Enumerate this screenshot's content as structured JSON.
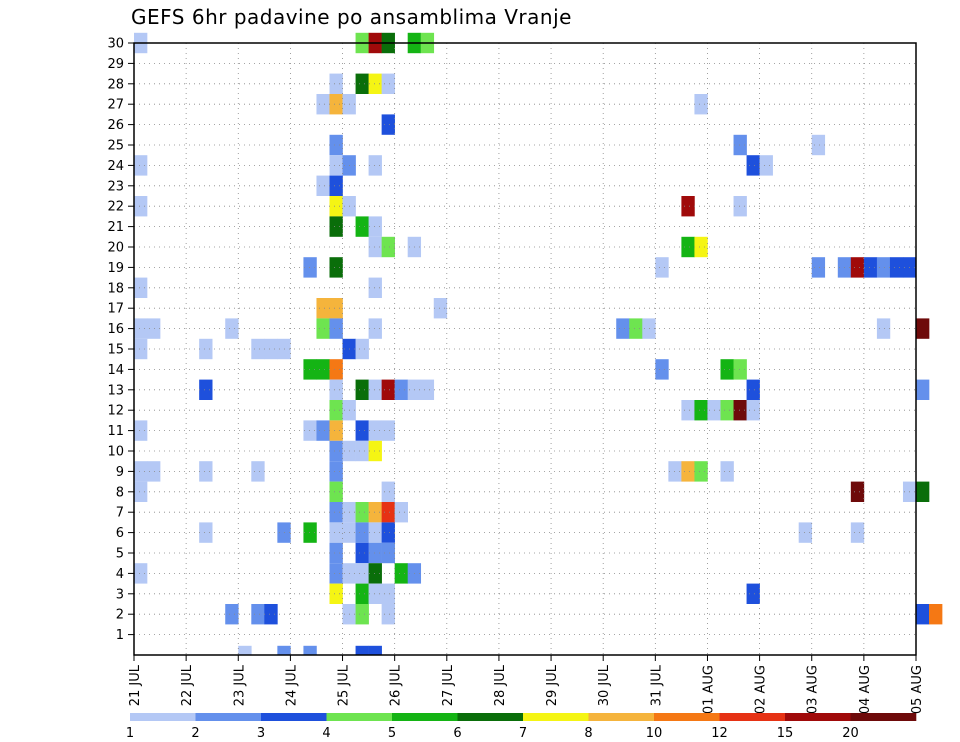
{
  "chart_data": {
    "type": "heatmap",
    "title": "GEFS 6hr padavine po ansamblima Vranje",
    "y_ticks": [
      1,
      2,
      3,
      4,
      5,
      6,
      7,
      8,
      9,
      10,
      11,
      12,
      13,
      14,
      15,
      16,
      17,
      18,
      19,
      20,
      21,
      22,
      23,
      24,
      25,
      26,
      27,
      28,
      29,
      30
    ],
    "x_tick_labels": [
      "21 JUL",
      "22 JUL",
      "23 JUL",
      "24 JUL",
      "25 JUL",
      "26 JUL",
      "27 JUL",
      "28 JUL",
      "29 JUL",
      "30 JUL",
      "31 JUL",
      "01 AUG",
      "02 AUG",
      "03 AUG",
      "04 AUG",
      "05 AUG"
    ],
    "x_start": "21 JUL",
    "x_step_hours": 6,
    "grid": true,
    "legend_position": "bottom",
    "colorbar": {
      "colors": [
        "#b4c8f5",
        "#6490ec",
        "#1e50dc",
        "#6ee450",
        "#14b414",
        "#0a6e0a",
        "#f5f514",
        "#f5b43c",
        "#f57814",
        "#e63214",
        "#a00a0a",
        "#6e0a0a"
      ],
      "labels": [
        "1",
        "2",
        "3",
        "4",
        "5",
        "6",
        "7",
        "8",
        "10",
        "12",
        "15",
        "20"
      ]
    },
    "cells": [
      {
        "member": 30,
        "step": 1,
        "level": 1
      },
      {
        "member": 30,
        "step": 18,
        "level": 4
      },
      {
        "member": 30,
        "step": 19,
        "level": 11
      },
      {
        "member": 30,
        "step": 20,
        "level": 6
      },
      {
        "member": 30,
        "step": 22,
        "level": 5
      },
      {
        "member": 30,
        "step": 23,
        "level": 4
      },
      {
        "member": 28,
        "step": 16,
        "level": 1
      },
      {
        "member": 28,
        "step": 18,
        "level": 6
      },
      {
        "member": 28,
        "step": 19,
        "level": 7
      },
      {
        "member": 28,
        "step": 20,
        "level": 1
      },
      {
        "member": 27,
        "step": 15,
        "level": 1
      },
      {
        "member": 27,
        "step": 16,
        "level": 8
      },
      {
        "member": 27,
        "step": 17,
        "level": 1
      },
      {
        "member": 27,
        "step": 44,
        "level": 1
      },
      {
        "member": 26,
        "step": 20,
        "level": 3
      },
      {
        "member": 25,
        "step": 16,
        "level": 2
      },
      {
        "member": 25,
        "step": 47,
        "level": 2
      },
      {
        "member": 25,
        "step": 53,
        "level": 1
      },
      {
        "member": 24,
        "step": 1,
        "level": 1
      },
      {
        "member": 24,
        "step": 16,
        "level": 1
      },
      {
        "member": 24,
        "step": 17,
        "level": 2
      },
      {
        "member": 24,
        "step": 19,
        "level": 1
      },
      {
        "member": 24,
        "step": 48,
        "level": 3
      },
      {
        "member": 24,
        "step": 49,
        "level": 1
      },
      {
        "member": 23,
        "step": 15,
        "level": 1
      },
      {
        "member": 23,
        "step": 16,
        "level": 3
      },
      {
        "member": 22,
        "step": 1,
        "level": 1
      },
      {
        "member": 22,
        "step": 16,
        "level": 7
      },
      {
        "member": 22,
        "step": 17,
        "level": 1
      },
      {
        "member": 22,
        "step": 43,
        "level": 11
      },
      {
        "member": 22,
        "step": 47,
        "level": 1
      },
      {
        "member": 21,
        "step": 16,
        "level": 6
      },
      {
        "member": 21,
        "step": 18,
        "level": 5
      },
      {
        "member": 21,
        "step": 19,
        "level": 1
      },
      {
        "member": 20,
        "step": 19,
        "level": 1
      },
      {
        "member": 20,
        "step": 20,
        "level": 4
      },
      {
        "member": 20,
        "step": 22,
        "level": 1
      },
      {
        "member": 20,
        "step": 43,
        "level": 5
      },
      {
        "member": 20,
        "step": 44,
        "level": 7
      },
      {
        "member": 19,
        "step": 14,
        "level": 2
      },
      {
        "member": 19,
        "step": 16,
        "level": 6
      },
      {
        "member": 19,
        "step": 41,
        "level": 1
      },
      {
        "member": 19,
        "step": 53,
        "level": 2
      },
      {
        "member": 19,
        "step": 55,
        "level": 2
      },
      {
        "member": 19,
        "step": 56,
        "level": 11
      },
      {
        "member": 19,
        "step": 57,
        "level": 3
      },
      {
        "member": 19,
        "step": 58,
        "level": 2
      },
      {
        "member": 19,
        "step": 59,
        "level": 3
      },
      {
        "member": 19,
        "step": 60,
        "level": 3
      },
      {
        "member": 18,
        "step": 1,
        "level": 1
      },
      {
        "member": 18,
        "step": 19,
        "level": 1
      },
      {
        "member": 17,
        "step": 15,
        "level": 8
      },
      {
        "member": 17,
        "step": 16,
        "level": 8
      },
      {
        "member": 17,
        "step": 24,
        "level": 1
      },
      {
        "member": 16,
        "step": 1,
        "level": 1
      },
      {
        "member": 16,
        "step": 2,
        "level": 1
      },
      {
        "member": 16,
        "step": 8,
        "level": 1
      },
      {
        "member": 16,
        "step": 15,
        "level": 4
      },
      {
        "member": 16,
        "step": 16,
        "level": 2
      },
      {
        "member": 16,
        "step": 19,
        "level": 1
      },
      {
        "member": 16,
        "step": 38,
        "level": 2
      },
      {
        "member": 16,
        "step": 39,
        "level": 4
      },
      {
        "member": 16,
        "step": 40,
        "level": 1
      },
      {
        "member": 16,
        "step": 58,
        "level": 1
      },
      {
        "member": 16,
        "step": 61,
        "level": 12
      },
      {
        "member": 15,
        "step": 1,
        "level": 1
      },
      {
        "member": 15,
        "step": 6,
        "level": 1
      },
      {
        "member": 15,
        "step": 10,
        "level": 1
      },
      {
        "member": 15,
        "step": 11,
        "level": 1
      },
      {
        "member": 15,
        "step": 12,
        "level": 1
      },
      {
        "member": 15,
        "step": 17,
        "level": 3
      },
      {
        "member": 15,
        "step": 18,
        "level": 1
      },
      {
        "member": 14,
        "step": 14,
        "level": 5
      },
      {
        "member": 14,
        "step": 15,
        "level": 5
      },
      {
        "member": 14,
        "step": 16,
        "level": 9
      },
      {
        "member": 14,
        "step": 41,
        "level": 2
      },
      {
        "member": 14,
        "step": 46,
        "level": 5
      },
      {
        "member": 14,
        "step": 47,
        "level": 4
      },
      {
        "member": 13,
        "step": 6,
        "level": 3
      },
      {
        "member": 13,
        "step": 16,
        "level": 1
      },
      {
        "member": 13,
        "step": 18,
        "level": 6
      },
      {
        "member": 13,
        "step": 19,
        "level": 1
      },
      {
        "member": 13,
        "step": 20,
        "level": 11
      },
      {
        "member": 13,
        "step": 21,
        "level": 2
      },
      {
        "member": 13,
        "step": 22,
        "level": 1
      },
      {
        "member": 13,
        "step": 23,
        "level": 1
      },
      {
        "member": 13,
        "step": 48,
        "level": 3
      },
      {
        "member": 13,
        "step": 61,
        "level": 2
      },
      {
        "member": 12,
        "step": 16,
        "level": 4
      },
      {
        "member": 12,
        "step": 17,
        "level": 1
      },
      {
        "member": 12,
        "step": 43,
        "level": 1
      },
      {
        "member": 12,
        "step": 44,
        "level": 5
      },
      {
        "member": 12,
        "step": 45,
        "level": 1
      },
      {
        "member": 12,
        "step": 46,
        "level": 4
      },
      {
        "member": 12,
        "step": 47,
        "level": 12
      },
      {
        "member": 12,
        "step": 48,
        "level": 1
      },
      {
        "member": 11,
        "step": 1,
        "level": 1
      },
      {
        "member": 11,
        "step": 14,
        "level": 1
      },
      {
        "member": 11,
        "step": 15,
        "level": 2
      },
      {
        "member": 11,
        "step": 16,
        "level": 8
      },
      {
        "member": 11,
        "step": 18,
        "level": 3
      },
      {
        "member": 11,
        "step": 19,
        "level": 1
      },
      {
        "member": 11,
        "step": 20,
        "level": 1
      },
      {
        "member": 10,
        "step": 16,
        "level": 2
      },
      {
        "member": 10,
        "step": 17,
        "level": 1
      },
      {
        "member": 10,
        "step": 18,
        "level": 1
      },
      {
        "member": 10,
        "step": 19,
        "level": 7
      },
      {
        "member": 9,
        "step": 1,
        "level": 1
      },
      {
        "member": 9,
        "step": 2,
        "level": 1
      },
      {
        "member": 9,
        "step": 6,
        "level": 1
      },
      {
        "member": 9,
        "step": 10,
        "level": 1
      },
      {
        "member": 9,
        "step": 16,
        "level": 2
      },
      {
        "member": 9,
        "step": 42,
        "level": 1
      },
      {
        "member": 9,
        "step": 43,
        "level": 8
      },
      {
        "member": 9,
        "step": 44,
        "level": 4
      },
      {
        "member": 9,
        "step": 46,
        "level": 1
      },
      {
        "member": 8,
        "step": 1,
        "level": 1
      },
      {
        "member": 8,
        "step": 16,
        "level": 4
      },
      {
        "member": 8,
        "step": 20,
        "level": 1
      },
      {
        "member": 8,
        "step": 56,
        "level": 12
      },
      {
        "member": 8,
        "step": 60,
        "level": 1
      },
      {
        "member": 8,
        "step": 61,
        "level": 6
      },
      {
        "member": 7,
        "step": 16,
        "level": 2
      },
      {
        "member": 7,
        "step": 17,
        "level": 1
      },
      {
        "member": 7,
        "step": 18,
        "level": 4
      },
      {
        "member": 7,
        "step": 19,
        "level": 8
      },
      {
        "member": 7,
        "step": 20,
        "level": 10
      },
      {
        "member": 7,
        "step": 21,
        "level": 1
      },
      {
        "member": 6,
        "step": 6,
        "level": 1
      },
      {
        "member": 6,
        "step": 12,
        "level": 2
      },
      {
        "member": 6,
        "step": 14,
        "level": 5
      },
      {
        "member": 6,
        "step": 16,
        "level": 1
      },
      {
        "member": 6,
        "step": 17,
        "level": 1
      },
      {
        "member": 6,
        "step": 18,
        "level": 2
      },
      {
        "member": 6,
        "step": 19,
        "level": 1
      },
      {
        "member": 6,
        "step": 20,
        "level": 3
      },
      {
        "member": 6,
        "step": 52,
        "level": 1
      },
      {
        "member": 6,
        "step": 56,
        "level": 1
      },
      {
        "member": 5,
        "step": 16,
        "level": 2
      },
      {
        "member": 5,
        "step": 18,
        "level": 3
      },
      {
        "member": 5,
        "step": 19,
        "level": 2
      },
      {
        "member": 5,
        "step": 20,
        "level": 2
      },
      {
        "member": 4,
        "step": 1,
        "level": 1
      },
      {
        "member": 4,
        "step": 16,
        "level": 2
      },
      {
        "member": 4,
        "step": 17,
        "level": 1
      },
      {
        "member": 4,
        "step": 18,
        "level": 1
      },
      {
        "member": 4,
        "step": 19,
        "level": 6
      },
      {
        "member": 4,
        "step": 21,
        "level": 5
      },
      {
        "member": 4,
        "step": 22,
        "level": 2
      },
      {
        "member": 3,
        "step": 16,
        "level": 7
      },
      {
        "member": 3,
        "step": 18,
        "level": 5
      },
      {
        "member": 3,
        "step": 19,
        "level": 1
      },
      {
        "member": 3,
        "step": 20,
        "level": 1
      },
      {
        "member": 3,
        "step": 48,
        "level": 3
      },
      {
        "member": 2,
        "step": 8,
        "level": 2
      },
      {
        "member": 2,
        "step": 10,
        "level": 2
      },
      {
        "member": 2,
        "step": 11,
        "level": 3
      },
      {
        "member": 2,
        "step": 17,
        "level": 1
      },
      {
        "member": 2,
        "step": 18,
        "level": 4
      },
      {
        "member": 2,
        "step": 20,
        "level": 1
      },
      {
        "member": 2,
        "step": 61,
        "level": 3
      },
      {
        "member": 2,
        "step": 62,
        "level": 9
      },
      {
        "member": 0,
        "step": 9,
        "level": 1
      },
      {
        "member": 0,
        "step": 12,
        "level": 2
      },
      {
        "member": 0,
        "step": 14,
        "level": 2
      },
      {
        "member": 0,
        "step": 18,
        "level": 3
      },
      {
        "member": 0,
        "step": 19,
        "level": 3
      }
    ]
  }
}
